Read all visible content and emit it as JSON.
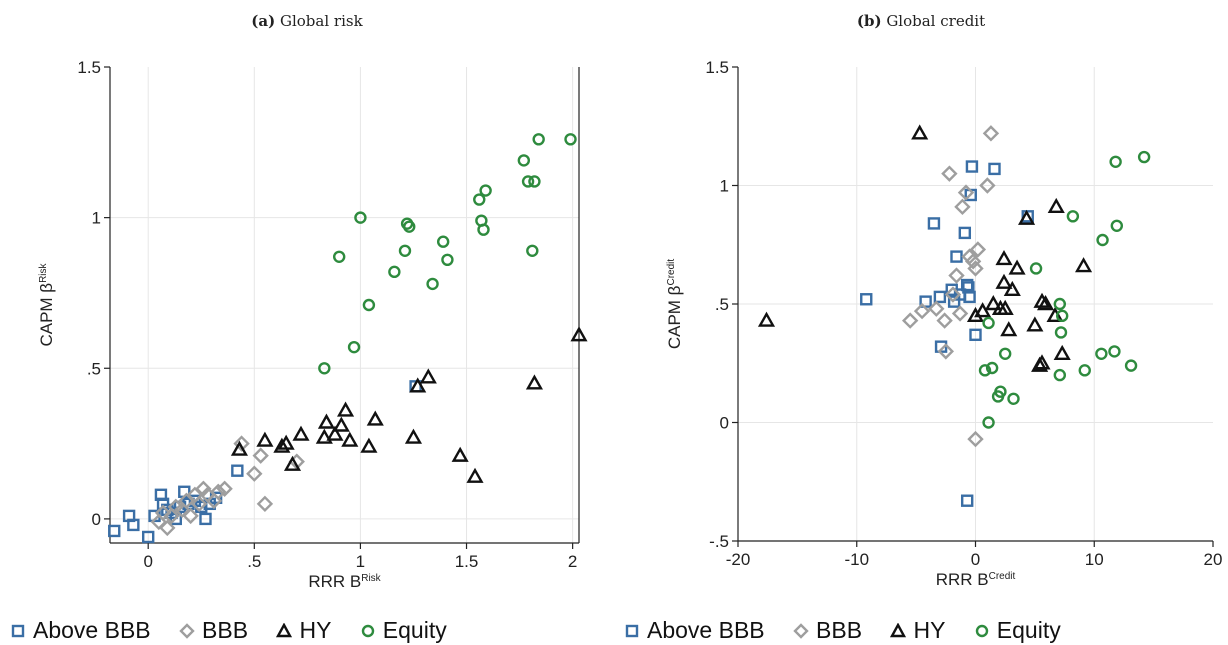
{
  "colors": {
    "above_bbb": "#3a6ea5",
    "bbb": "#9e9e9e",
    "hy": "#111111",
    "equity": "#2e8b3e",
    "grid": "#e6e6e6",
    "axis": "#222222"
  },
  "legend": [
    "Above BBB",
    "BBB",
    "HY",
    "Equity"
  ],
  "chart_data": [
    {
      "type": "scatter",
      "panel_label": "(a)",
      "title": "Global risk",
      "xlabel": "RRR B",
      "xlabel_sup": "Risk",
      "ylabel": "CAPM β",
      "ylabel_sup": "Risk",
      "xlim": [
        -0.18,
        2.03
      ],
      "ylim": [
        -0.08,
        1.5
      ],
      "x_ticks": [
        0,
        0.5,
        1,
        1.5,
        2
      ],
      "x_tick_labels": [
        "0",
        ".5",
        "1",
        "1.5",
        "2"
      ],
      "y_ticks": [
        0,
        0.5,
        1,
        1.5
      ],
      "y_tick_labels": [
        "0",
        ".5",
        "1",
        "1.5"
      ],
      "grid": true,
      "legend_position": "bottom",
      "series": [
        {
          "name": "Above BBB",
          "marker": "square",
          "points": [
            [
              -0.16,
              -0.04
            ],
            [
              -0.09,
              0.01
            ],
            [
              -0.07,
              -0.02
            ],
            [
              0.0,
              -0.06
            ],
            [
              0.03,
              0.01
            ],
            [
              0.06,
              0.08
            ],
            [
              0.07,
              0.05
            ],
            [
              0.09,
              0.03
            ],
            [
              0.11,
              0.02
            ],
            [
              0.13,
              0.0
            ],
            [
              0.15,
              0.04
            ],
            [
              0.17,
              0.09
            ],
            [
              0.19,
              0.05
            ],
            [
              0.22,
              0.06
            ],
            [
              0.25,
              0.04
            ],
            [
              0.27,
              0.0
            ],
            [
              0.29,
              0.05
            ],
            [
              0.32,
              0.07
            ],
            [
              0.42,
              0.16
            ],
            [
              1.26,
              0.44
            ]
          ]
        },
        {
          "name": "BBB",
          "marker": "diamond",
          "points": [
            [
              0.05,
              -0.01
            ],
            [
              0.07,
              0.02
            ],
            [
              0.09,
              -0.03
            ],
            [
              0.11,
              0.01
            ],
            [
              0.13,
              0.04
            ],
            [
              0.16,
              0.03
            ],
            [
              0.18,
              0.06
            ],
            [
              0.2,
              0.01
            ],
            [
              0.22,
              0.08
            ],
            [
              0.24,
              0.05
            ],
            [
              0.26,
              0.1
            ],
            [
              0.28,
              0.08
            ],
            [
              0.31,
              0.06
            ],
            [
              0.33,
              0.09
            ],
            [
              0.36,
              0.1
            ],
            [
              0.44,
              0.25
            ],
            [
              0.5,
              0.15
            ],
            [
              0.53,
              0.21
            ],
            [
              0.55,
              0.05
            ],
            [
              0.7,
              0.19
            ]
          ]
        },
        {
          "name": "HY",
          "marker": "triangle",
          "points": [
            [
              0.43,
              0.23
            ],
            [
              0.55,
              0.26
            ],
            [
              0.63,
              0.24
            ],
            [
              0.65,
              0.25
            ],
            [
              0.68,
              0.18
            ],
            [
              0.72,
              0.28
            ],
            [
              0.83,
              0.27
            ],
            [
              0.84,
              0.32
            ],
            [
              0.88,
              0.28
            ],
            [
              0.91,
              0.31
            ],
            [
              0.93,
              0.36
            ],
            [
              0.95,
              0.26
            ],
            [
              1.04,
              0.24
            ],
            [
              1.07,
              0.33
            ],
            [
              1.25,
              0.27
            ],
            [
              1.27,
              0.44
            ],
            [
              1.32,
              0.47
            ],
            [
              1.47,
              0.21
            ],
            [
              1.54,
              0.14
            ],
            [
              1.82,
              0.45
            ],
            [
              2.03,
              0.61
            ]
          ]
        },
        {
          "name": "Equity",
          "marker": "circle",
          "points": [
            [
              0.83,
              0.5
            ],
            [
              0.9,
              0.87
            ],
            [
              0.97,
              0.57
            ],
            [
              1.0,
              1.0
            ],
            [
              1.04,
              0.71
            ],
            [
              1.16,
              0.82
            ],
            [
              1.21,
              0.89
            ],
            [
              1.22,
              0.98
            ],
            [
              1.23,
              0.97
            ],
            [
              1.34,
              0.78
            ],
            [
              1.39,
              0.92
            ],
            [
              1.41,
              0.86
            ],
            [
              1.56,
              1.06
            ],
            [
              1.57,
              0.99
            ],
            [
              1.58,
              0.96
            ],
            [
              1.59,
              1.09
            ],
            [
              1.77,
              1.19
            ],
            [
              1.79,
              1.12
            ],
            [
              1.81,
              0.89
            ],
            [
              1.82,
              1.12
            ],
            [
              1.84,
              1.26
            ],
            [
              1.99,
              1.26
            ]
          ]
        }
      ]
    },
    {
      "type": "scatter",
      "panel_label": "(b)",
      "title": "Global credit",
      "xlabel": "RRR B",
      "xlabel_sup": "Credit",
      "ylabel": "CAPM β",
      "ylabel_sup": "Credit",
      "xlim": [
        -20,
        20
      ],
      "ylim": [
        -0.5,
        1.5
      ],
      "x_ticks": [
        -20,
        -10,
        0,
        10,
        20
      ],
      "x_tick_labels": [
        "-20",
        "-10",
        "0",
        "10",
        "20"
      ],
      "y_ticks": [
        -0.5,
        0,
        0.5,
        1,
        1.5
      ],
      "y_tick_labels": [
        "-.5",
        "0",
        ".5",
        "1",
        "1.5"
      ],
      "grid": true,
      "legend_position": "bottom",
      "series": [
        {
          "name": "Above BBB",
          "marker": "square",
          "points": [
            [
              -9.2,
              0.52
            ],
            [
              -4.2,
              0.51
            ],
            [
              -3.5,
              0.84
            ],
            [
              -3.0,
              0.53
            ],
            [
              -2.9,
              0.32
            ],
            [
              -2.0,
              0.56
            ],
            [
              -1.8,
              0.51
            ],
            [
              -1.6,
              0.7
            ],
            [
              -1.3,
              0.54
            ],
            [
              -0.9,
              0.8
            ],
            [
              -0.7,
              0.58
            ],
            [
              -0.6,
              0.57
            ],
            [
              -0.5,
              0.53
            ],
            [
              -0.4,
              0.96
            ],
            [
              -0.3,
              1.08
            ],
            [
              0.0,
              0.37
            ],
            [
              -0.7,
              -0.33
            ],
            [
              1.6,
              1.07
            ],
            [
              4.4,
              0.87
            ]
          ]
        },
        {
          "name": "BBB",
          "marker": "diamond",
          "points": [
            [
              -5.5,
              0.43
            ],
            [
              -4.5,
              0.47
            ],
            [
              -3.3,
              0.48
            ],
            [
              -2.6,
              0.43
            ],
            [
              -2.5,
              0.3
            ],
            [
              -2.2,
              1.05
            ],
            [
              -1.9,
              0.54
            ],
            [
              -1.6,
              0.62
            ],
            [
              -1.3,
              0.46
            ],
            [
              -1.1,
              0.91
            ],
            [
              -0.8,
              0.97
            ],
            [
              -0.5,
              0.7
            ],
            [
              -0.2,
              0.68
            ],
            [
              0.0,
              0.65
            ],
            [
              0.2,
              0.73
            ],
            [
              1.0,
              1.0
            ],
            [
              1.3,
              1.22
            ],
            [
              0.0,
              -0.07
            ]
          ]
        },
        {
          "name": "HY",
          "marker": "triangle",
          "points": [
            [
              -17.6,
              0.43
            ],
            [
              -4.7,
              1.22
            ],
            [
              0.0,
              0.45
            ],
            [
              0.6,
              0.47
            ],
            [
              1.5,
              0.5
            ],
            [
              2.1,
              0.48
            ],
            [
              2.4,
              0.59
            ],
            [
              2.4,
              0.69
            ],
            [
              2.5,
              0.48
            ],
            [
              2.8,
              0.39
            ],
            [
              3.1,
              0.56
            ],
            [
              3.5,
              0.65
            ],
            [
              4.3,
              0.86
            ],
            [
              5.0,
              0.41
            ],
            [
              5.4,
              0.24
            ],
            [
              5.6,
              0.25
            ],
            [
              5.6,
              0.51
            ],
            [
              5.9,
              0.5
            ],
            [
              6.7,
              0.45
            ],
            [
              6.8,
              0.91
            ],
            [
              7.3,
              0.29
            ],
            [
              9.1,
              0.66
            ]
          ]
        },
        {
          "name": "Equity",
          "marker": "circle",
          "points": [
            [
              0.8,
              0.22
            ],
            [
              1.1,
              0.0
            ],
            [
              1.1,
              0.42
            ],
            [
              1.4,
              0.23
            ],
            [
              1.9,
              0.11
            ],
            [
              2.1,
              0.13
            ],
            [
              2.5,
              0.29
            ],
            [
              3.2,
              0.1
            ],
            [
              5.1,
              0.65
            ],
            [
              7.1,
              0.5
            ],
            [
              7.1,
              0.2
            ],
            [
              7.2,
              0.38
            ],
            [
              7.3,
              0.45
            ],
            [
              8.2,
              0.87
            ],
            [
              9.2,
              0.22
            ],
            [
              10.6,
              0.29
            ],
            [
              10.7,
              0.77
            ],
            [
              11.7,
              0.3
            ],
            [
              11.8,
              1.1
            ],
            [
              11.9,
              0.83
            ],
            [
              13.1,
              0.24
            ],
            [
              14.2,
              1.12
            ]
          ]
        }
      ]
    }
  ]
}
